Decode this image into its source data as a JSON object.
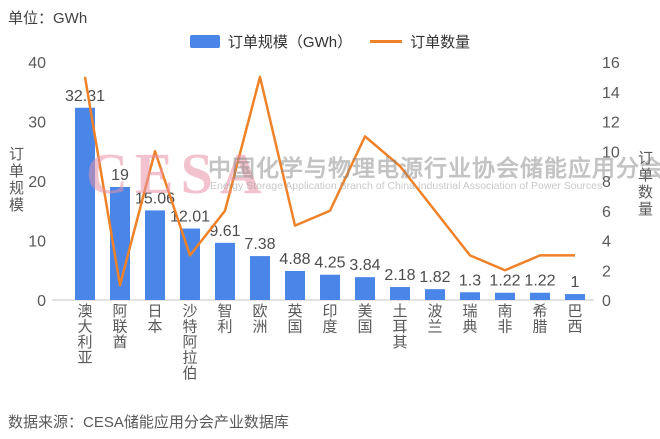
{
  "unit_label": "单位：GWh",
  "legend": {
    "bar_label": "订单规模（GWh）",
    "line_label": "订单数量"
  },
  "watermark": {
    "logo": "CESA",
    "title_cn": "中国化学与物理电源行业协会储能应用分会",
    "subtitle_en": "Energy Storage Application Branch of China Industrial Association of Power Sources"
  },
  "source": "数据来源：CESA储能应用分会产业数据库",
  "colors": {
    "bar": "#4A86E8",
    "line": "#EF8228",
    "axis_line": "#d9d9d9",
    "tick_text": "#595959",
    "value_label": "#4d4d4d"
  },
  "chart_data": {
    "type": "bar+line combo",
    "categories": [
      "澳大利亚",
      "阿联酋",
      "日本",
      "沙特阿拉伯",
      "智利",
      "欧洲",
      "英国",
      "印度",
      "美国",
      "土耳其",
      "波兰",
      "瑞典",
      "南非",
      "希腊",
      "巴西"
    ],
    "series": [
      {
        "name": "订单规模（GWh）",
        "type": "bar",
        "axis": "left",
        "values": [
          32.31,
          19,
          15.06,
          12.01,
          9.61,
          7.38,
          4.88,
          4.25,
          3.84,
          2.18,
          1.82,
          1.3,
          1.22,
          1.22,
          1
        ],
        "labels": [
          "32.31",
          "19",
          "15.06",
          "12.01",
          "9.61",
          "7.38",
          "4.88",
          "4.25",
          "3.84",
          "2.18",
          "1.82",
          "1.3",
          "1.22",
          "1.22",
          "1"
        ]
      },
      {
        "name": "订单数量",
        "type": "line",
        "axis": "right",
        "values": [
          15,
          1,
          10,
          3,
          6,
          15,
          5,
          6,
          11,
          9,
          6,
          3,
          2,
          3,
          3
        ]
      }
    ],
    "left_axis": {
      "title": "订单规模",
      "min": 0,
      "max": 40,
      "ticks": [
        0,
        10,
        20,
        30,
        40
      ]
    },
    "right_axis": {
      "title": "订单数量",
      "min": 0,
      "max": 16,
      "ticks": [
        0,
        2,
        4,
        6,
        8,
        10,
        12,
        14,
        16
      ]
    },
    "grid": false,
    "legend_position": "top-center"
  }
}
